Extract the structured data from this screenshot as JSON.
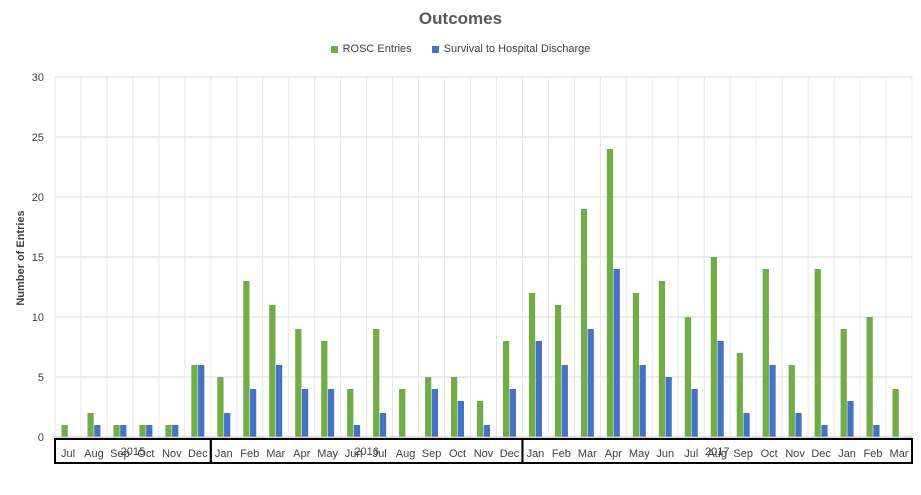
{
  "chart_data": {
    "type": "bar",
    "title": "Outcomes",
    "xlabel": "",
    "ylabel": "Number of Entries",
    "ylim": [
      0,
      30
    ],
    "yticks": [
      "0",
      "5",
      "10",
      "15",
      "20",
      "25",
      "30"
    ],
    "grid": true,
    "legend_position": "top-center",
    "categories": [
      "Jul",
      "Aug",
      "Sep",
      "Oct",
      "Nov",
      "Dec",
      "Jan",
      "Feb",
      "Mar",
      "Apr",
      "May",
      "Jun",
      "Jul",
      "Aug",
      "Sep",
      "Oct",
      "Nov",
      "Dec",
      "Jan",
      "Feb",
      "Mar",
      "Apr",
      "May",
      "Jun",
      "Jul",
      "Aug",
      "Sep",
      "Oct",
      "Nov",
      "Dec",
      "Jan",
      "Feb",
      "Mar"
    ],
    "groups": [
      {
        "label": "2015",
        "span": 6
      },
      {
        "label": "2016",
        "span": 12
      },
      {
        "label": "2017",
        "span": 15
      }
    ],
    "series": [
      {
        "name": "ROSC Entries",
        "color": "#70ad47",
        "values": [
          1,
          2,
          1,
          1,
          1,
          6,
          5,
          13,
          11,
          9,
          8,
          4,
          9,
          4,
          5,
          5,
          3,
          8,
          12,
          11,
          19,
          24,
          12,
          13,
          10,
          15,
          7,
          14,
          6,
          14,
          9,
          10,
          4
        ]
      },
      {
        "name": "Survival to Hospital Discharge",
        "color": "#4472c4",
        "values": [
          0,
          1,
          1,
          1,
          1,
          6,
          2,
          4,
          6,
          4,
          4,
          1,
          2,
          0,
          4,
          3,
          1,
          4,
          8,
          6,
          9,
          14,
          6,
          5,
          4,
          8,
          2,
          6,
          2,
          1,
          3,
          1,
          0
        ]
      }
    ]
  }
}
